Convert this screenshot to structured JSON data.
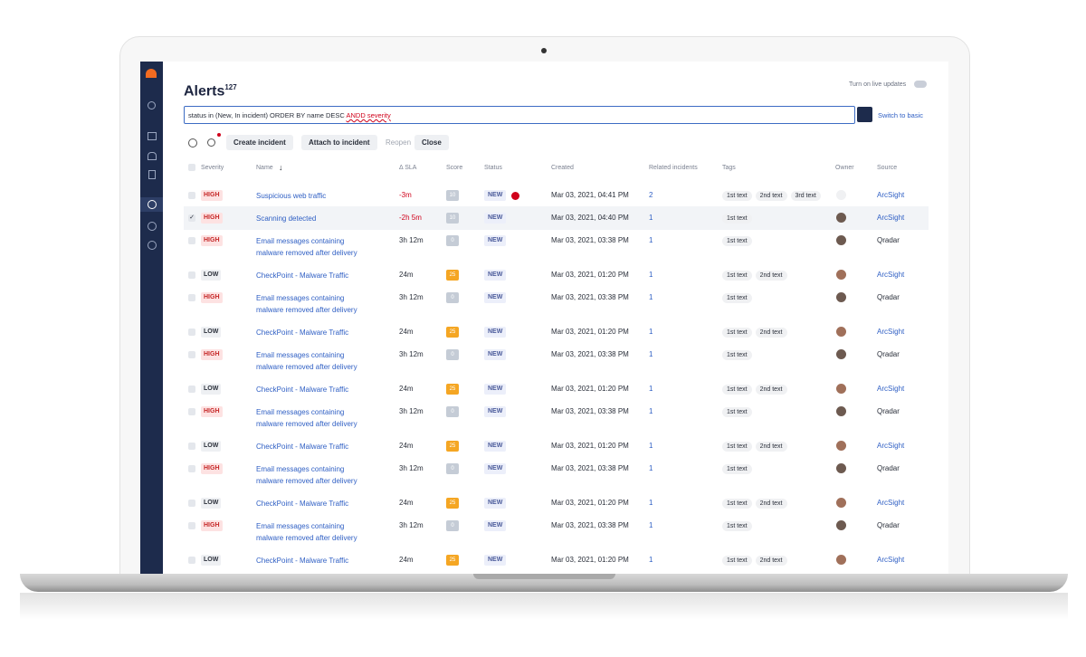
{
  "header": {
    "title": "Alerts",
    "count": "127",
    "live_updates": "Turn on live updates"
  },
  "query": {
    "text": "status in (New, In incident) ORDER BY name DESC ",
    "error_text": "ANDD severity",
    "switch": "Switch to basic"
  },
  "toolbar": [
    "Create incident",
    "Attach to incident",
    "Reopen",
    "Close"
  ],
  "columns": [
    "Severity",
    "Name",
    "Δ SLA",
    "Score",
    "Status",
    "Created",
    "Related incidents",
    "Tags",
    "Owner",
    "Source"
  ],
  "rows": [
    {
      "severity": "HIGH",
      "name": "Suspicious web traffic",
      "sla": "-3m",
      "score": 10,
      "status": "NEW",
      "flagged": true,
      "created": "Mar 03, 2021, 04:41 PM",
      "related": 2,
      "tags": [
        "1st text",
        "2nd text",
        "3rd text"
      ],
      "owner_assigned": false,
      "source": "ArcSight",
      "source_color": "#2f5fc4"
    },
    {
      "severity": "HIGH",
      "name": "Scanning detected",
      "sla": "-2h 5m",
      "score": 10,
      "status": "NEW",
      "checked": true,
      "created": "Mar 03, 2021, 04:40 PM",
      "related": 1,
      "tags": [
        "1st text"
      ],
      "source": "ArcSight",
      "source_color": "#2f5fc4"
    },
    {
      "severity": "HIGH",
      "name": "Email messages containing malware removed after delivery",
      "sla": "3h 12m",
      "score": 0,
      "status": "NEW",
      "created": "Mar 03, 2021, 03:38 PM",
      "related": 1,
      "tags": [
        "1st text"
      ],
      "source": "Qradar",
      "source_color": "#2a2f3a"
    },
    {
      "severity": "LOW",
      "name": "CheckPoint - Malware Traffic",
      "sla": "24m",
      "score": 25,
      "status": "NEW",
      "created": "Mar 03, 2021, 01:20 PM",
      "related": 1,
      "tags": [
        "1st text",
        "2nd text"
      ],
      "source": "ArcSight",
      "source_color": "#2f5fc4"
    },
    {
      "severity": "HIGH",
      "name": "Email messages containing malware removed after delivery",
      "sla": "3h 12m",
      "score": 0,
      "status": "NEW",
      "created": "Mar 03, 2021, 03:38 PM",
      "related": 1,
      "tags": [
        "1st text"
      ],
      "source": "Qradar",
      "source_color": "#2a2f3a"
    },
    {
      "severity": "LOW",
      "name": "CheckPoint - Malware Traffic",
      "sla": "24m",
      "score": 25,
      "status": "NEW",
      "created": "Mar 03, 2021, 01:20 PM",
      "related": 1,
      "tags": [
        "1st text",
        "2nd text"
      ],
      "source": "ArcSight",
      "source_color": "#2f5fc4"
    },
    {
      "severity": "HIGH",
      "name": "Email messages containing malware removed after delivery",
      "sla": "3h 12m",
      "score": 0,
      "status": "NEW",
      "created": "Mar 03, 2021, 03:38 PM",
      "related": 1,
      "tags": [
        "1st text"
      ],
      "source": "Qradar",
      "source_color": "#2a2f3a"
    },
    {
      "severity": "LOW",
      "name": "CheckPoint - Malware Traffic",
      "sla": "24m",
      "score": 25,
      "status": "NEW",
      "created": "Mar 03, 2021, 01:20 PM",
      "related": 1,
      "tags": [
        "1st text",
        "2nd text"
      ],
      "source": "ArcSight",
      "source_color": "#2f5fc4"
    },
    {
      "severity": "HIGH",
      "name": "Email messages containing malware removed after delivery",
      "sla": "3h 12m",
      "score": 0,
      "status": "NEW",
      "created": "Mar 03, 2021, 03:38 PM",
      "related": 1,
      "tags": [
        "1st text"
      ],
      "source": "Qradar",
      "source_color": "#2a2f3a"
    },
    {
      "severity": "LOW",
      "name": "CheckPoint - Malware Traffic",
      "sla": "24m",
      "score": 25,
      "status": "NEW",
      "created": "Mar 03, 2021, 01:20 PM",
      "related": 1,
      "tags": [
        "1st text",
        "2nd text"
      ],
      "source": "ArcSight",
      "source_color": "#2f5fc4"
    },
    {
      "severity": "HIGH",
      "name": "Email messages containing malware removed after delivery",
      "sla": "3h 12m",
      "score": 0,
      "status": "NEW",
      "created": "Mar 03, 2021, 03:38 PM",
      "related": 1,
      "tags": [
        "1st text"
      ],
      "source": "Qradar",
      "source_color": "#2a2f3a"
    },
    {
      "severity": "LOW",
      "name": "CheckPoint - Malware Traffic",
      "sla": "24m",
      "score": 25,
      "status": "NEW",
      "created": "Mar 03, 2021, 01:20 PM",
      "related": 1,
      "tags": [
        "1st text",
        "2nd text"
      ],
      "source": "ArcSight",
      "source_color": "#2f5fc4"
    },
    {
      "severity": "HIGH",
      "name": "Email messages containing malware removed after delivery",
      "sla": "3h 12m",
      "score": 0,
      "status": "NEW",
      "created": "Mar 03, 2021, 03:38 PM",
      "related": 1,
      "tags": [
        "1st text"
      ],
      "source": "Qradar",
      "source_color": "#2a2f3a"
    },
    {
      "severity": "LOW",
      "name": "CheckPoint - Malware Traffic",
      "sla": "24m",
      "score": 25,
      "status": "NEW",
      "created": "Mar 03, 2021, 01:20 PM",
      "related": 1,
      "tags": [
        "1st text",
        "2nd text"
      ],
      "source": "ArcSight",
      "source_color": "#2f5fc4"
    }
  ]
}
